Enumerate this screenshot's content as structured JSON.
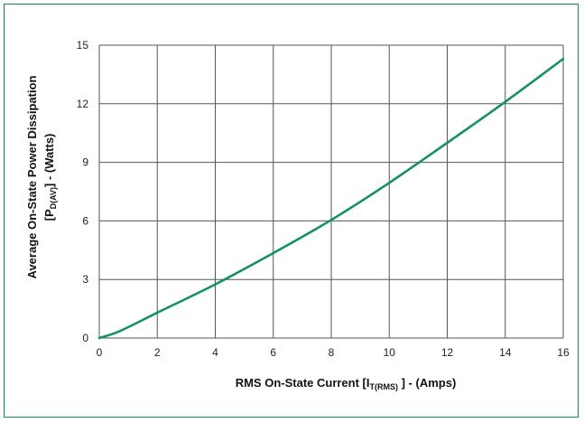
{
  "chart_data": {
    "type": "line",
    "title": "",
    "xlabel": {
      "main": "RMS On-State Current [I",
      "sub": "T(RMS)",
      "tail": " ] - (Amps)"
    },
    "ylabel": {
      "line1": "Average On-State Power Dissipation",
      "line2_main": "[P",
      "line2_sub": "D(AV)",
      "line2_tail": "] - (Watts)"
    },
    "xlim": [
      0,
      16
    ],
    "ylim": [
      0,
      15
    ],
    "xticks": [
      0,
      2,
      4,
      6,
      8,
      10,
      12,
      14,
      16
    ],
    "yticks": [
      0,
      3,
      6,
      9,
      12,
      15
    ],
    "grid": true,
    "series": [
      {
        "color": "#15925e",
        "x": [
          0,
          0.7,
          2,
          4,
          6,
          8,
          10,
          12,
          14,
          16
        ],
        "y": [
          0,
          0.35,
          1.3,
          2.75,
          4.35,
          6.05,
          7.95,
          10.0,
          12.1,
          14.3
        ]
      }
    ]
  },
  "colors": {
    "frame": "#0f8a5a",
    "grid": "#555555"
  }
}
